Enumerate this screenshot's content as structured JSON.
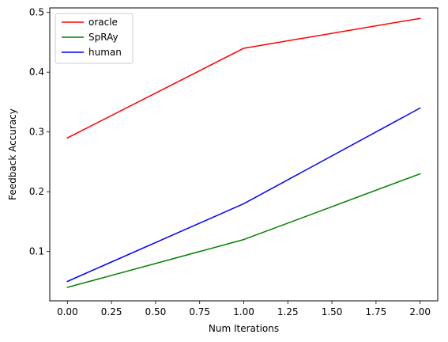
{
  "chart_data": {
    "type": "line",
    "title": "",
    "xlabel": "Num Iterations",
    "ylabel": "Feedback Accuracy",
    "x": [
      0,
      1,
      2
    ],
    "xlim": [
      -0.1,
      2.1
    ],
    "ylim": [
      0.0175,
      0.5075
    ],
    "xticks": [
      "0.00",
      "0.25",
      "0.50",
      "0.75",
      "1.00",
      "1.25",
      "1.50",
      "1.75",
      "2.00"
    ],
    "xtick_values": [
      0,
      0.25,
      0.5,
      0.75,
      1.0,
      1.25,
      1.5,
      1.75,
      2.0
    ],
    "yticks": [
      "0.1",
      "0.2",
      "0.3",
      "0.4",
      "0.5"
    ],
    "ytick_values": [
      0.1,
      0.2,
      0.3,
      0.4,
      0.5
    ],
    "grid": false,
    "legend_position": "top-left",
    "series": [
      {
        "name": "oracle",
        "color": "#ff0000",
        "values": [
          0.29,
          0.44,
          0.49
        ]
      },
      {
        "name": "SpRAy",
        "color": "#008000",
        "values": [
          0.04,
          0.12,
          0.23
        ]
      },
      {
        "name": "human",
        "color": "#0000ff",
        "values": [
          0.05,
          0.18,
          0.34
        ]
      }
    ]
  }
}
